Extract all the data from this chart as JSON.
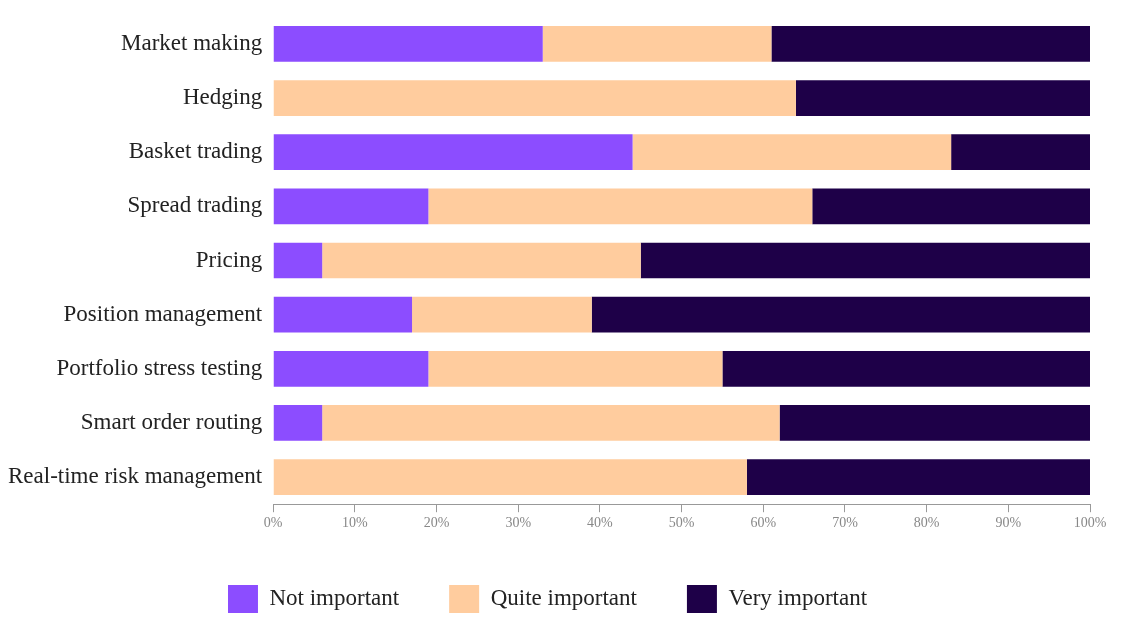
{
  "chart_data": {
    "type": "bar",
    "orientation": "horizontal",
    "stacked": true,
    "grid": false,
    "legend": "bottom",
    "categories": [
      "Market making",
      "Hedging",
      "Basket trading",
      "Spread trading",
      "Pricing",
      "Position management",
      "Portfolio stress testing",
      "Smart order routing",
      "Real-time risk management"
    ],
    "series": [
      {
        "name": "Not important",
        "color": "#8c4dff",
        "values": [
          33,
          0,
          44,
          19,
          6,
          17,
          19,
          6,
          0
        ]
      },
      {
        "name": "Quite important",
        "color": "#ffcc9e",
        "values": [
          28,
          64,
          39,
          47,
          39,
          22,
          36,
          56,
          58
        ]
      },
      {
        "name": "Very important",
        "color": "#1e0048",
        "values": [
          39,
          36,
          17,
          34,
          55,
          61,
          45,
          38,
          42
        ]
      }
    ],
    "xlim": [
      0,
      100
    ],
    "xticks": [
      {
        "value": 0,
        "label": "0%"
      },
      {
        "value": 10,
        "label": "10%"
      },
      {
        "value": 20,
        "label": "20%"
      },
      {
        "value": 30,
        "label": "30%"
      },
      {
        "value": 40,
        "label": "40%"
      },
      {
        "value": 50,
        "label": "50%"
      },
      {
        "value": 60,
        "label": "60%"
      },
      {
        "value": 70,
        "label": "70%"
      },
      {
        "value": 80,
        "label": "80%"
      },
      {
        "value": 90,
        "label": "90%"
      },
      {
        "value": 100,
        "label": "100%"
      }
    ]
  }
}
